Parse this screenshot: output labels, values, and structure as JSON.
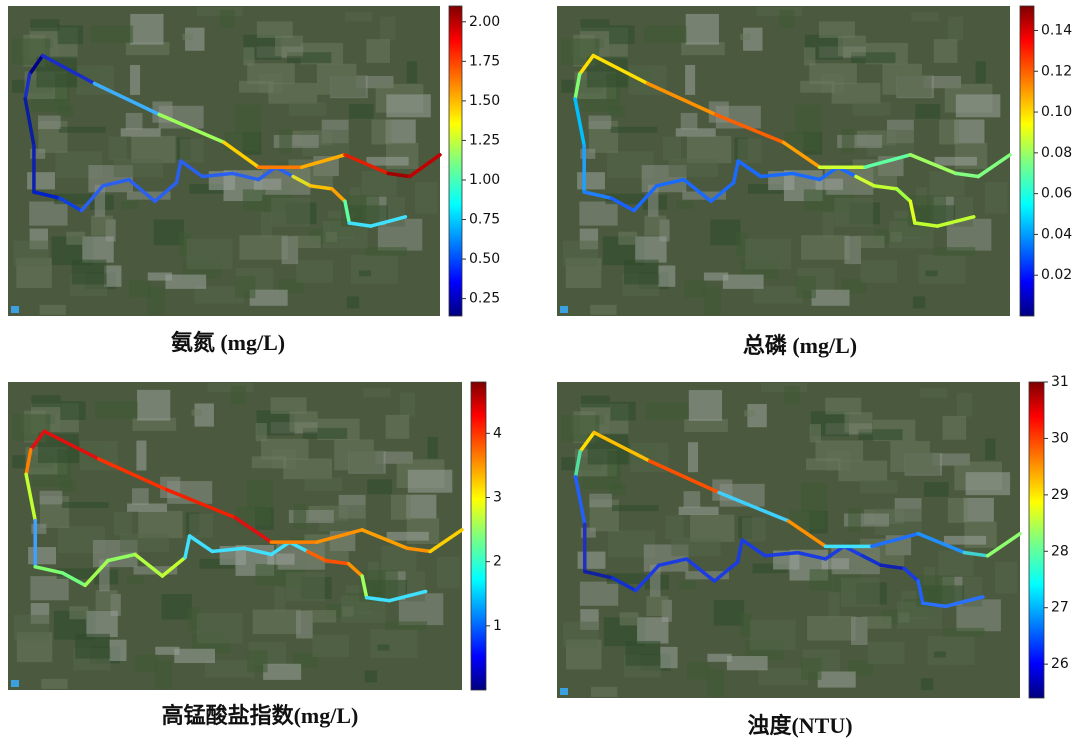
{
  "panels": [
    {
      "title": "氨氮 (mg/L)",
      "colorbar_lim": [
        0.14,
        2.1
      ],
      "colorbar_ticks": [
        {
          "value": 0.25,
          "label": "0.25"
        },
        {
          "value": 0.5,
          "label": "0.50"
        },
        {
          "value": 0.75,
          "label": "0.75"
        },
        {
          "value": 1,
          "label": "1.00"
        },
        {
          "value": 1.25,
          "label": "1.25"
        },
        {
          "value": 1.5,
          "label": "1.50"
        },
        {
          "value": 1.75,
          "label": "1.75"
        },
        {
          "value": 2,
          "label": "2.00"
        }
      ]
    },
    {
      "title": "总磷 (mg/L)",
      "colorbar_lim": [
        0,
        0.152
      ],
      "colorbar_ticks": [
        {
          "value": 0.02,
          "label": "0.02"
        },
        {
          "value": 0.04,
          "label": "0.04"
        },
        {
          "value": 0.06,
          "label": "0.06"
        },
        {
          "value": 0.08,
          "label": "0.08"
        },
        {
          "value": 0.1,
          "label": "0.10"
        },
        {
          "value": 0.12,
          "label": "0.12"
        },
        {
          "value": 0.14,
          "label": "0.14"
        }
      ]
    },
    {
      "title": "高锰酸盐指数(mg/L)",
      "colorbar_lim": [
        0,
        4.8
      ],
      "colorbar_ticks": [
        1,
        2,
        3,
        4
      ]
    },
    {
      "title": "浊度(NTU)",
      "colorbar_lim": [
        25.4,
        31
      ],
      "colorbar_ticks": [
        26,
        27,
        28,
        29,
        30,
        31
      ]
    }
  ]
}
